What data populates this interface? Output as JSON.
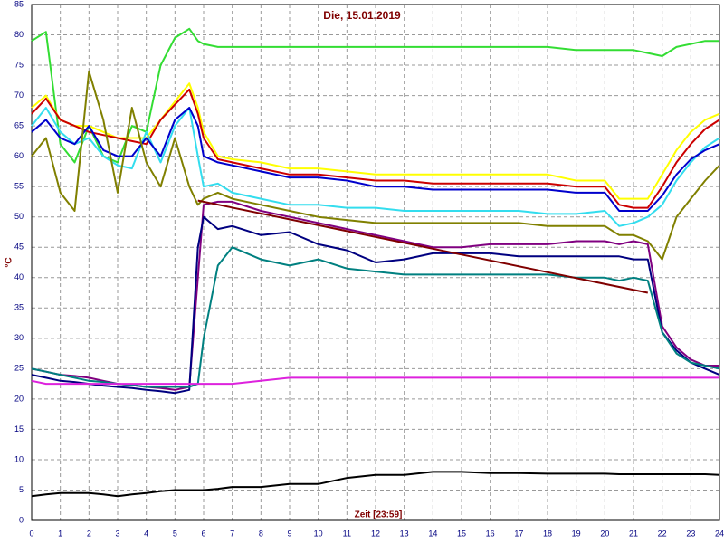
{
  "chart_data": {
    "type": "line",
    "title": "Die, 15.01.2019",
    "ylabel": "°C",
    "xlabel": "Zeit [23:59]",
    "x": [
      0,
      0.5,
      1,
      1.5,
      2,
      2.5,
      3,
      3.5,
      4,
      4.5,
      5,
      5.5,
      5.8,
      6,
      6.5,
      7,
      8,
      9,
      10,
      11,
      12,
      13,
      14,
      15,
      16,
      17,
      18,
      19,
      20,
      20.5,
      21,
      21.5,
      22,
      22.5,
      23,
      23.5,
      24
    ],
    "series": [
      {
        "color": "#33dd33",
        "values": [
          79,
          80.5,
          62,
          59,
          65,
          60,
          59,
          65,
          64,
          75,
          79.5,
          81,
          79,
          78.5,
          78,
          78,
          78,
          78,
          78,
          78,
          78,
          78,
          78,
          78,
          78,
          78,
          78,
          77.5,
          77.5,
          77.5,
          77.5,
          77,
          76.5,
          78,
          78.5,
          79,
          79
        ]
      },
      {
        "color": "#ffff00",
        "values": [
          68,
          70,
          66,
          65,
          65,
          64,
          63,
          63,
          63,
          66,
          69,
          72,
          68,
          64,
          60,
          59.5,
          59,
          58,
          58,
          57.5,
          57,
          57,
          57,
          57,
          57,
          57,
          57,
          56,
          56,
          53,
          53,
          53,
          57,
          61,
          64,
          66,
          67
        ]
      },
      {
        "color": "#cc0000",
        "values": [
          67,
          69.5,
          66,
          65,
          64,
          63.5,
          63,
          62.5,
          62,
          66,
          68.5,
          71,
          67,
          63,
          59.5,
          59,
          58,
          57,
          57,
          56.5,
          56,
          56,
          55.5,
          55.5,
          55.5,
          55.5,
          55.5,
          55,
          55,
          52,
          51.5,
          51.5,
          55,
          59,
          62,
          64.5,
          66
        ]
      },
      {
        "color": "#33ddee",
        "values": [
          65,
          68,
          64,
          62,
          63,
          60,
          58.5,
          58,
          64,
          59,
          65,
          68,
          60,
          55,
          55.5,
          54,
          53,
          52,
          52,
          51.5,
          51.5,
          51,
          51,
          51,
          51,
          51,
          50.5,
          50.5,
          51,
          48.5,
          49,
          50,
          52,
          56,
          59,
          61.5,
          63
        ]
      },
      {
        "color": "#0000cc",
        "values": [
          64,
          66,
          63,
          62,
          65,
          61,
          60,
          60,
          63,
          60,
          66,
          68,
          65,
          60,
          59,
          58.5,
          57.5,
          56.5,
          56.5,
          56,
          55,
          55,
          54.5,
          54.5,
          54.5,
          54.5,
          54.5,
          54,
          54,
          51,
          51,
          51,
          53.5,
          57,
          59.5,
          61,
          62
        ]
      },
      {
        "color": "#808000",
        "values": [
          60,
          63,
          54,
          51,
          74,
          66,
          54,
          68,
          59,
          55,
          63,
          55,
          52,
          53,
          54,
          53,
          52,
          51,
          50,
          49.5,
          49,
          49,
          49,
          49,
          49,
          49,
          48.5,
          48.5,
          48.5,
          47,
          47,
          46,
          43,
          50,
          53,
          56,
          58.5
        ]
      },
      {
        "color": "#800080",
        "values": [
          25,
          24.5,
          24,
          23.8,
          23.5,
          23,
          22.5,
          22.3,
          22,
          21.8,
          21.5,
          22,
          40,
          52,
          52.5,
          52.5,
          51,
          50,
          49,
          48,
          47,
          46,
          45,
          45,
          45.5,
          45.5,
          45.5,
          46,
          46,
          45.5,
          46,
          45.5,
          32,
          28.5,
          26.5,
          25.5,
          25.5
        ]
      },
      {
        "color": "#000080",
        "values": [
          24,
          23.5,
          23,
          22.8,
          22.5,
          22.2,
          22,
          21.8,
          21.5,
          21.3,
          21,
          21.5,
          45,
          50,
          48,
          48.5,
          47,
          47.5,
          45.5,
          44.5,
          42.5,
          43,
          44,
          44,
          44,
          43.5,
          43.5,
          43.5,
          43.5,
          43.5,
          43,
          43,
          31,
          28,
          26,
          25,
          24
        ]
      },
      {
        "color": "#008080",
        "values": [
          25,
          24.5,
          24,
          23.5,
          23,
          22.8,
          22.5,
          22.3,
          22,
          22,
          22,
          22,
          22.5,
          30,
          42,
          45,
          43,
          42,
          43,
          41.5,
          41,
          40.5,
          40.5,
          40.5,
          40.5,
          40.5,
          40.5,
          40,
          40,
          39.5,
          40,
          39.5,
          31,
          27.5,
          26,
          25.5,
          25
        ]
      },
      {
        "color": "#dd22dd",
        "values": [
          23,
          22.5,
          22.5,
          22.5,
          22.5,
          22.5,
          22.5,
          22.5,
          22.5,
          22.5,
          22.5,
          22.5,
          22.5,
          22.5,
          22.5,
          22.5,
          23,
          23.5,
          23.5,
          23.5,
          23.5,
          23.5,
          23.5,
          23.5,
          23.5,
          23.5,
          23.5,
          23.5,
          23.5,
          23.5,
          23.5,
          23.5,
          23.5,
          23.5,
          23.5,
          23.5,
          23.5
        ]
      },
      {
        "color": "#000000",
        "values": [
          4,
          4.3,
          4.5,
          4.5,
          4.5,
          4.3,
          4,
          4.3,
          4.5,
          4.8,
          5,
          5,
          5,
          5,
          5.2,
          5.5,
          5.5,
          6,
          6,
          7,
          7.5,
          7.5,
          8,
          8,
          7.8,
          7.8,
          7.7,
          7.7,
          7.7,
          7.6,
          7.6,
          7.6,
          7.6,
          7.6,
          7.6,
          7.6,
          7.5
        ]
      },
      {
        "color": "#800000",
        "x": [
          5.8,
          21.5
        ],
        "values": [
          52.7,
          37.5
        ]
      }
    ],
    "xlim": [
      0,
      24
    ],
    "xticks": [
      0,
      1,
      2,
      3,
      4,
      5,
      6,
      7,
      8,
      9,
      10,
      11,
      12,
      13,
      14,
      15,
      16,
      17,
      18,
      19,
      20,
      21,
      22,
      23,
      24
    ],
    "ylim": [
      0,
      85
    ],
    "yticks": [
      0,
      5,
      10,
      15,
      20,
      25,
      30,
      35,
      40,
      45,
      50,
      55,
      60,
      65,
      70,
      75,
      80,
      85
    ],
    "grid": true
  }
}
